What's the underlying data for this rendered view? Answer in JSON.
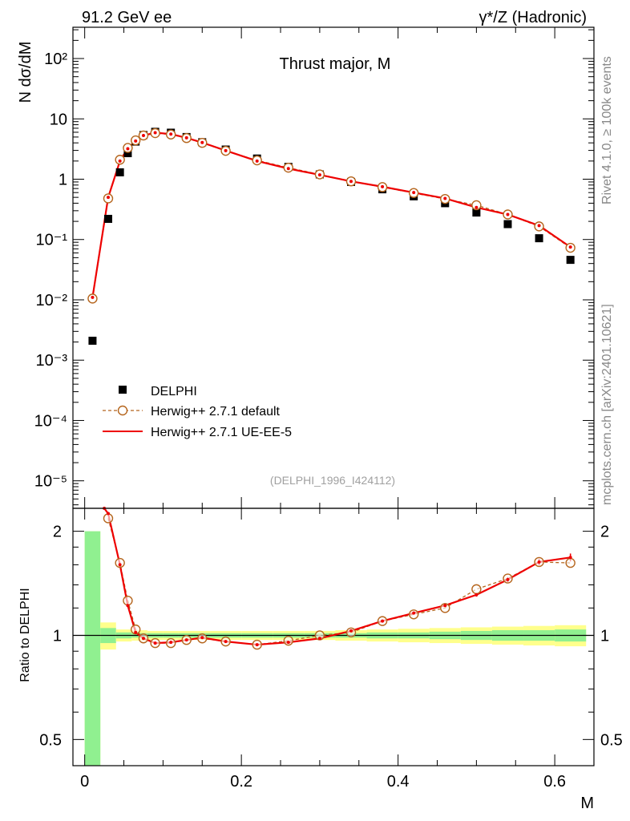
{
  "header": {
    "left": "91.2 GeV ee",
    "right": "γ*/Z (Hadronic)"
  },
  "side_labels": {
    "rivet": "Rivet 4.1.0, ≥ 100k events",
    "mcplots": "mcplots.cern.ch [arXiv:2401.10621]"
  },
  "chart_data": [
    {
      "type": "scatter",
      "title": "Thrust major, M",
      "ylabel": "N  dσ/dM",
      "xlabel": "M",
      "yscale": "log",
      "ylim": [
        3.5e-06,
        330
      ],
      "xlim": [
        -0.015,
        0.65
      ],
      "y_ticks": [
        "10⁻⁵",
        "10⁻⁴",
        "10⁻³",
        "10⁻²",
        "10⁻¹",
        "1",
        "10",
        "10²"
      ],
      "annotation": "(DELPHI_1996_I424112)",
      "legend": [
        "DELPHI",
        "Herwig++ 2.7.1 default",
        "Herwig++ 2.7.1 UE-EE-5"
      ],
      "legend_position": "lower-left",
      "x": [
        0.01,
        0.03,
        0.045,
        0.055,
        0.065,
        0.075,
        0.09,
        0.11,
        0.13,
        0.15,
        0.18,
        0.22,
        0.26,
        0.3,
        0.34,
        0.38,
        0.42,
        0.46,
        0.5,
        0.54,
        0.58,
        0.62
      ],
      "series": [
        {
          "name": "DELPHI",
          "style": "square",
          "color": "#000000",
          "values": [
            0.0021,
            0.22,
            1.3,
            2.7,
            4.2,
            5.4,
            6.1,
            5.9,
            5.0,
            4.1,
            3.1,
            2.2,
            1.6,
            1.2,
            0.9,
            0.68,
            0.52,
            0.4,
            0.28,
            0.18,
            0.105,
            0.046
          ]
        },
        {
          "name": "Herwig++ 2.7.1 default",
          "style": "circle-dashed",
          "color": "#b5651d",
          "values": [
            0.0105,
            0.48,
            2.1,
            3.3,
            4.4,
            5.3,
            5.8,
            5.5,
            4.8,
            4.0,
            2.95,
            2.05,
            1.55,
            1.2,
            0.92,
            0.74,
            0.59,
            0.47,
            0.37,
            0.26,
            0.165,
            0.073
          ]
        },
        {
          "name": "Herwig++ 2.7.1 UE-EE-5",
          "style": "line",
          "color": "#ee0000",
          "values": [
            0.011,
            0.5,
            2.0,
            3.2,
            4.3,
            5.3,
            5.9,
            5.6,
            4.85,
            4.05,
            2.98,
            2.0,
            1.5,
            1.18,
            0.92,
            0.75,
            0.6,
            0.48,
            0.34,
            0.26,
            0.17,
            0.075
          ]
        }
      ]
    },
    {
      "type": "line",
      "ylabel": "Ratio to DELPHI",
      "xlabel": "M",
      "yscale": "log",
      "ylim": [
        0.42,
        2.33
      ],
      "xlim": [
        -0.015,
        0.65
      ],
      "y_ticks": [
        "0.5",
        "1",
        "2"
      ],
      "x_ticks": [
        "0",
        "0.2",
        "0.4",
        "0.6"
      ],
      "reference": 1,
      "bands": {
        "edges": [
          0.0,
          0.02,
          0.04,
          0.06,
          0.08,
          0.1,
          0.12,
          0.14,
          0.16,
          0.2,
          0.24,
          0.28,
          0.32,
          0.36,
          0.4,
          0.44,
          0.48,
          0.52,
          0.56,
          0.6,
          0.64
        ],
        "yellow": [
          1.0,
          0.09,
          0.04,
          0.035,
          0.03,
          0.03,
          0.03,
          0.03,
          0.03,
          0.03,
          0.03,
          0.03,
          0.035,
          0.04,
          0.045,
          0.05,
          0.055,
          0.06,
          0.065,
          0.07
        ],
        "green": [
          1.0,
          0.05,
          0.02,
          0.015,
          0.015,
          0.015,
          0.015,
          0.015,
          0.015,
          0.015,
          0.015,
          0.015,
          0.015,
          0.02,
          0.02,
          0.025,
          0.03,
          0.035,
          0.035,
          0.04
        ]
      },
      "series": [
        {
          "name": "Herwig++ 2.7.1 default",
          "style": "circle-dashed",
          "color": "#b5651d",
          "x": [
            0.03,
            0.045,
            0.055,
            0.065,
            0.075,
            0.09,
            0.11,
            0.13,
            0.15,
            0.18,
            0.22,
            0.26,
            0.3,
            0.34,
            0.38,
            0.42,
            0.46,
            0.5,
            0.54,
            0.58,
            0.62
          ],
          "values": [
            2.18,
            1.62,
            1.26,
            1.04,
            0.98,
            0.95,
            0.95,
            0.97,
            0.98,
            0.96,
            0.94,
            0.965,
            1.0,
            1.02,
            1.1,
            1.15,
            1.2,
            1.36,
            1.46,
            1.63,
            1.62
          ]
        },
        {
          "name": "Herwig++ 2.7.1 UE-EE-5",
          "style": "line",
          "color": "#ee0000",
          "x": [
            0.025,
            0.03,
            0.045,
            0.055,
            0.065,
            0.075,
            0.09,
            0.11,
            0.13,
            0.15,
            0.18,
            0.22,
            0.26,
            0.3,
            0.34,
            0.38,
            0.42,
            0.46,
            0.5,
            0.54,
            0.58,
            0.62
          ],
          "values": [
            2.33,
            2.25,
            1.6,
            1.22,
            1.02,
            0.98,
            0.95,
            0.955,
            0.97,
            0.985,
            0.96,
            0.94,
            0.955,
            0.98,
            1.03,
            1.1,
            1.16,
            1.22,
            1.31,
            1.45,
            1.63,
            1.68
          ]
        }
      ]
    }
  ]
}
